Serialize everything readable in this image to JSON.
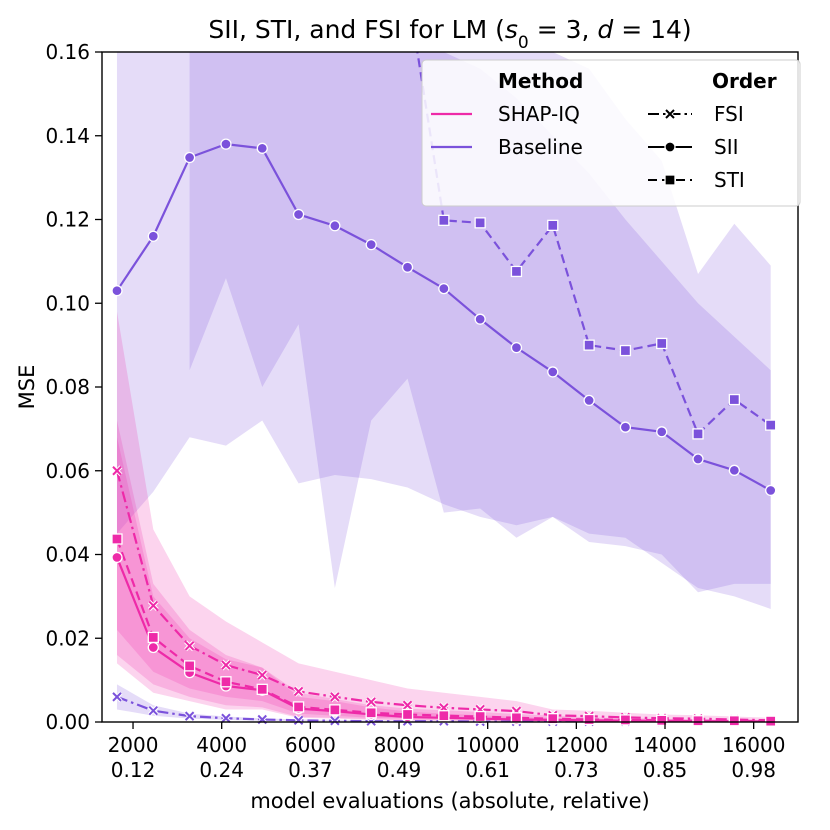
{
  "chart_data": {
    "type": "line",
    "title": "SII, STI, and FSI for LM",
    "title_params": {
      "s_symbol": "s",
      "s_sub": "0",
      "s_eq": " = 3, ",
      "d_symbol": "d",
      "d_eq": " = 14)",
      "open": " ("
    },
    "xlabel": "model evaluations (absolute, relative)",
    "ylabel": "MSE",
    "xlim": [
      1300,
      17000
    ],
    "ylim": [
      0,
      0.16
    ],
    "x_ticks": [
      {
        "x": 2000,
        "abs": "2000",
        "rel": "0.12"
      },
      {
        "x": 4000,
        "abs": "4000",
        "rel": "0.24"
      },
      {
        "x": 6000,
        "abs": "6000",
        "rel": "0.37"
      },
      {
        "x": 8000,
        "abs": "8000",
        "rel": "0.49"
      },
      {
        "x": 10000,
        "abs": "10000",
        "rel": "0.61"
      },
      {
        "x": 12000,
        "abs": "12000",
        "rel": "0.73"
      },
      {
        "x": 14000,
        "abs": "14000",
        "rel": "0.85"
      },
      {
        "x": 16000,
        "abs": "16000",
        "rel": "0.98"
      }
    ],
    "y_ticks": [
      {
        "y": 0.0,
        "label": "0.00"
      },
      {
        "y": 0.02,
        "label": "0.02"
      },
      {
        "y": 0.04,
        "label": "0.04"
      },
      {
        "y": 0.06,
        "label": "0.06"
      },
      {
        "y": 0.08,
        "label": "0.08"
      },
      {
        "y": 0.1,
        "label": "0.10"
      },
      {
        "y": 0.12,
        "label": "0.12"
      },
      {
        "y": 0.14,
        "label": "0.14"
      },
      {
        "y": 0.16,
        "label": "0.16"
      }
    ],
    "x": [
      1638,
      2457,
      3276,
      4096,
      4915,
      5734,
      6553,
      7372,
      8192,
      9011,
      9830,
      10649,
      11468,
      12288,
      13107,
      13926,
      14745,
      15564,
      16384
    ],
    "series": [
      {
        "name": "Baseline SII",
        "method": "Baseline",
        "order": "SII",
        "color": "#7b52db",
        "dash": "solid",
        "marker": "circle",
        "values": [
          0.103,
          0.116,
          0.1348,
          0.138,
          0.137,
          0.1212,
          0.1185,
          0.114,
          0.1086,
          0.1035,
          0.0962,
          0.0894,
          0.0836,
          0.0768,
          0.0704,
          0.0693,
          0.0628,
          0.0601,
          0.0553
        ],
        "band_low": [
          0.045,
          0.055,
          0.068,
          0.066,
          0.072,
          0.057,
          0.059,
          0.058,
          0.056,
          0.052,
          0.049,
          0.047,
          0.049,
          0.043,
          0.042,
          0.04,
          0.031,
          0.033,
          0.033
        ],
        "band_high": [
          0.16,
          0.16,
          0.16,
          0.16,
          0.16,
          0.16,
          0.16,
          0.16,
          0.16,
          0.16,
          0.156,
          0.149,
          0.14,
          0.131,
          0.12,
          0.11,
          0.1,
          0.092,
          0.084
        ]
      },
      {
        "name": "Baseline STI",
        "method": "Baseline",
        "order": "STI",
        "color": "#7b52db",
        "dash": "dashed",
        "marker": "square",
        "values": [
          null,
          null,
          null,
          null,
          null,
          null,
          null,
          null,
          null,
          0.1198,
          0.1192,
          0.1076,
          0.1186,
          0.09,
          0.0887,
          0.0904,
          0.0688,
          0.077,
          0.0709
        ],
        "lead_in": [
          [
            8192,
            0.175
          ],
          [
            9011,
            0.1198
          ]
        ],
        "band_low": [
          null,
          null,
          0.084,
          0.106,
          0.08,
          0.095,
          0.032,
          0.072,
          0.082,
          0.05,
          0.051,
          0.044,
          0.049,
          0.045,
          0.044,
          0.038,
          0.032,
          0.03,
          0.027
        ],
        "band_high": [
          null,
          null,
          0.16,
          0.16,
          0.16,
          0.16,
          0.16,
          0.16,
          0.16,
          0.16,
          0.16,
          0.16,
          0.16,
          0.156,
          0.144,
          0.134,
          0.107,
          0.119,
          0.109
        ]
      },
      {
        "name": "Baseline FSI",
        "method": "Baseline",
        "order": "FSI",
        "color": "#7b52db",
        "dash": "dashdot",
        "marker": "x",
        "values": [
          0.006,
          0.0027,
          0.0014,
          0.0009,
          0.0006,
          0.0004,
          0.0003,
          0.0002,
          0.0002,
          0.0002,
          0.0001,
          0.0001,
          0.0001,
          0.0001,
          0.0001,
          0.0001,
          0.0001,
          0.0001,
          0.0001
        ],
        "band_low": [
          0.003,
          0.0015,
          0.0008,
          0.0005,
          0.0003,
          0.0002,
          0.0002,
          0.0001,
          0.0001,
          0.0001,
          0.0001,
          0.0,
          0.0,
          0.0,
          0.0,
          0.0,
          0.0,
          0.0,
          0.0
        ],
        "band_high": [
          0.009,
          0.004,
          0.002,
          0.0013,
          0.0009,
          0.0006,
          0.0005,
          0.0004,
          0.0003,
          0.0003,
          0.0002,
          0.0002,
          0.0002,
          0.0002,
          0.0002,
          0.0002,
          0.0002,
          0.0002,
          0.0002
        ]
      },
      {
        "name": "SHAP-IQ FSI",
        "method": "SHAP-IQ",
        "order": "FSI",
        "color": "#ee2aa8",
        "dash": "dashdot",
        "marker": "x",
        "values": [
          0.06,
          0.0278,
          0.0182,
          0.0136,
          0.0112,
          0.0073,
          0.006,
          0.0048,
          0.004,
          0.0034,
          0.003,
          0.0026,
          0.0016,
          0.0014,
          0.0011,
          0.0009,
          0.0008,
          0.0006,
          0.0004
        ],
        "band_low": [
          0.022,
          0.012,
          0.008,
          0.006,
          0.005,
          0.002,
          0.0015,
          0.001,
          0.001,
          0.0008,
          0.0006,
          0.0005,
          0.0003,
          0.0003,
          0.0002,
          0.0002,
          0.0001,
          0.0001,
          0.0
        ],
        "band_high": [
          0.098,
          0.046,
          0.03,
          0.024,
          0.019,
          0.014,
          0.012,
          0.01,
          0.008,
          0.007,
          0.006,
          0.005,
          0.003,
          0.0027,
          0.0022,
          0.0018,
          0.0016,
          0.0013,
          0.001
        ]
      },
      {
        "name": "SHAP-IQ SII",
        "method": "SHAP-IQ",
        "order": "SII",
        "color": "#ee2aa8",
        "dash": "solid",
        "marker": "circle",
        "values": [
          0.0393,
          0.0178,
          0.0118,
          0.0086,
          0.0076,
          0.0032,
          0.0026,
          0.0018,
          0.0012,
          0.001,
          0.0008,
          0.0006,
          0.0005,
          0.0004,
          0.0003,
          0.0003,
          0.0002,
          0.0002,
          0.0001
        ],
        "band_low": [
          0.014,
          0.007,
          0.005,
          0.003,
          0.003,
          0.001,
          0.0008,
          0.0005,
          0.0003,
          0.0003,
          0.0002,
          0.0001,
          0.0001,
          0.0001,
          0.0,
          0.0,
          0.0,
          0.0,
          0.0
        ],
        "band_high": [
          0.068,
          0.03,
          0.02,
          0.015,
          0.013,
          0.006,
          0.005,
          0.0035,
          0.0025,
          0.002,
          0.0016,
          0.0012,
          0.001,
          0.0008,
          0.0006,
          0.0006,
          0.0004,
          0.0004,
          0.0002
        ]
      },
      {
        "name": "SHAP-IQ STI",
        "method": "SHAP-IQ",
        "order": "STI",
        "color": "#ee2aa8",
        "dash": "dashed",
        "marker": "square",
        "values": [
          0.0437,
          0.0202,
          0.0134,
          0.0096,
          0.0078,
          0.0036,
          0.0029,
          0.0022,
          0.0018,
          0.0015,
          0.0013,
          0.001,
          0.0008,
          0.0006,
          0.0005,
          0.0004,
          0.0003,
          0.0003,
          0.0002
        ],
        "band_low": [
          0.016,
          0.009,
          0.006,
          0.004,
          0.0035,
          0.0012,
          0.001,
          0.0007,
          0.0005,
          0.0004,
          0.0003,
          0.0002,
          0.0002,
          0.0001,
          0.0001,
          0.0001,
          0.0,
          0.0,
          0.0
        ],
        "band_high": [
          0.072,
          0.033,
          0.022,
          0.016,
          0.013,
          0.007,
          0.0055,
          0.004,
          0.0032,
          0.0028,
          0.0024,
          0.0019,
          0.0015,
          0.0011,
          0.0009,
          0.0008,
          0.0006,
          0.0006,
          0.0004
        ]
      }
    ],
    "legend": {
      "placement": "top-right",
      "method_header": "Method",
      "order_header": "Order",
      "methods": [
        {
          "label": "SHAP-IQ",
          "color": "#ee2aa8"
        },
        {
          "label": "Baseline",
          "color": "#7b52db"
        }
      ],
      "orders": [
        {
          "label": "FSI",
          "dash": "dashdot",
          "marker": "x"
        },
        {
          "label": "SII",
          "dash": "solid",
          "marker": "circle"
        },
        {
          "label": "STI",
          "dash": "dashed",
          "marker": "square"
        }
      ]
    }
  }
}
